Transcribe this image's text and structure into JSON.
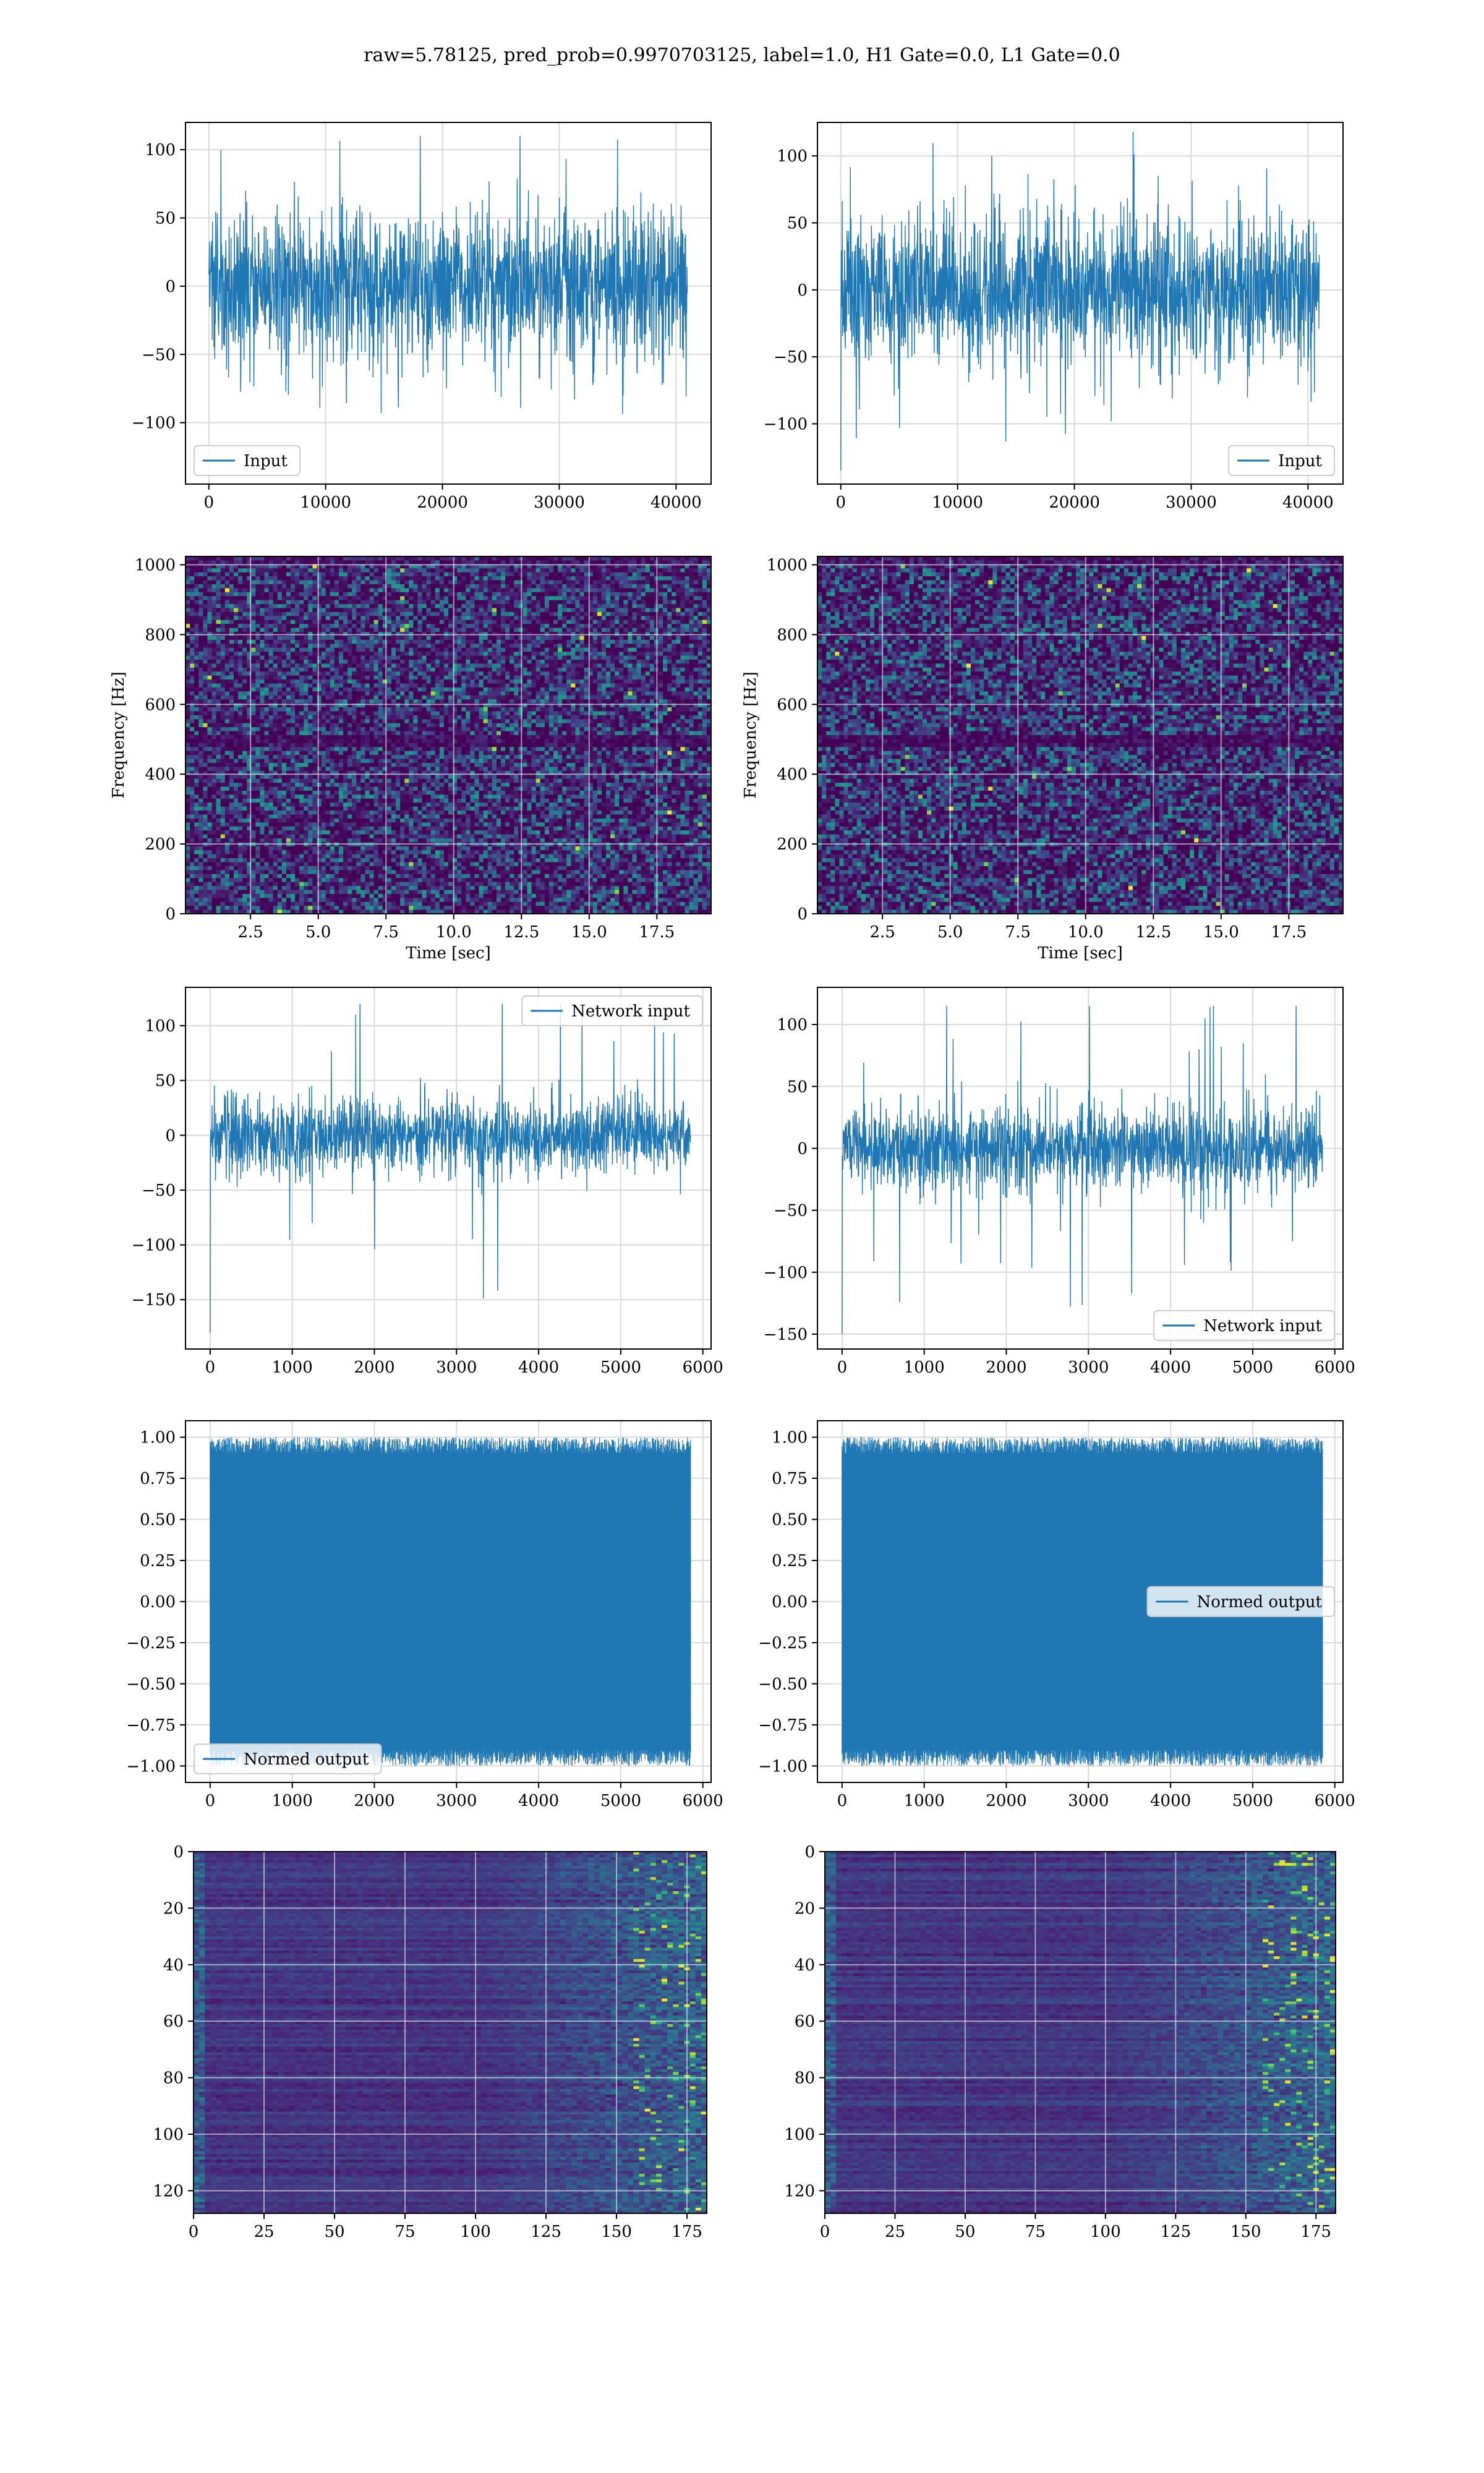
{
  "suptitle": "raw=5.78125, pred_prob=0.9970703125, label=1.0, H1 Gate=0.0, L1 Gate=0.0",
  "colors": {
    "line": "#1f77b4",
    "grid": "#d9d9d9",
    "viridis": [
      "#440154",
      "#482878",
      "#3e4989",
      "#31688e",
      "#26828e",
      "#1f9e89",
      "#35b779",
      "#6ece58",
      "#b5de2b",
      "#fde725"
    ]
  },
  "chart_data": [
    {
      "type": "line",
      "id": "h1-input",
      "legend": "Input",
      "legend_loc": "lower-left",
      "x_range": [
        0,
        40960
      ],
      "y_mean": 0,
      "y_band": 65,
      "y_min": -130,
      "y_max": 110,
      "xlim": [
        -2000,
        43000
      ],
      "ylim": [
        -145,
        120
      ],
      "xticks": [
        0,
        10000,
        20000,
        30000,
        40000
      ],
      "yticks": [
        -100,
        -50,
        0,
        50,
        100
      ]
    },
    {
      "type": "line",
      "id": "l1-input",
      "legend": "Input",
      "legend_loc": "lower-right",
      "x_range": [
        0,
        40960
      ],
      "y_mean": 0,
      "y_band": 65,
      "y_min": -135,
      "y_max": 120,
      "xlim": [
        -2000,
        43000
      ],
      "ylim": [
        -145,
        125
      ],
      "xticks": [
        0,
        10000,
        20000,
        30000,
        40000
      ],
      "yticks": [
        -100,
        -50,
        0,
        50,
        100
      ]
    },
    {
      "type": "heatmap",
      "id": "h1-spectrogram",
      "xlabel": "Time [sec]",
      "ylabel": "Frequency [Hz]",
      "xlim": [
        0.1,
        19.5
      ],
      "ylim": [
        0,
        1024
      ],
      "xticks": [
        2.5,
        5.0,
        7.5,
        10.0,
        12.5,
        15.0,
        17.5
      ],
      "xticklabels": [
        "2.5",
        "5.0",
        "7.5",
        "10.0",
        "12.5",
        "15.0",
        "17.5"
      ],
      "yticks": [
        0,
        200,
        400,
        600,
        800,
        1000
      ],
      "dark_band_hz": 500
    },
    {
      "type": "heatmap",
      "id": "l1-spectrogram",
      "xlabel": "Time [sec]",
      "ylabel": "Frequency [Hz]",
      "xlim": [
        0.1,
        19.5
      ],
      "ylim": [
        0,
        1024
      ],
      "xticks": [
        2.5,
        5.0,
        7.5,
        10.0,
        12.5,
        15.0,
        17.5
      ],
      "xticklabels": [
        "2.5",
        "5.0",
        "7.5",
        "10.0",
        "12.5",
        "15.0",
        "17.5"
      ],
      "yticks": [
        0,
        200,
        400,
        600,
        800,
        1000
      ],
      "dark_band_hz": 500
    },
    {
      "type": "line",
      "id": "h1-network-input",
      "legend": "Network input",
      "legend_loc": "upper-right",
      "x_range": [
        0,
        5850
      ],
      "y_mean": 0,
      "y_band": 40,
      "y_min": -180,
      "y_max": 120,
      "xlim": [
        -300,
        6100
      ],
      "ylim": [
        -195,
        135
      ],
      "xticks": [
        0,
        1000,
        2000,
        3000,
        4000,
        5000,
        6000
      ],
      "yticks": [
        -150,
        -100,
        -50,
        0,
        50,
        100
      ]
    },
    {
      "type": "line",
      "id": "l1-network-input",
      "legend": "Network input",
      "legend_loc": "lower-right",
      "x_range": [
        0,
        5850
      ],
      "y_mean": 0,
      "y_band": 40,
      "y_min": -150,
      "y_max": 115,
      "xlim": [
        -300,
        6100
      ],
      "ylim": [
        -162,
        130
      ],
      "xticks": [
        0,
        1000,
        2000,
        3000,
        4000,
        5000,
        6000
      ],
      "yticks": [
        -150,
        -100,
        -50,
        0,
        50,
        100
      ]
    },
    {
      "type": "area",
      "id": "h1-normed-output",
      "legend": "Normed output",
      "legend_loc": "lower-left",
      "x_range": [
        0,
        5850
      ],
      "y_min": -1.0,
      "y_max": 1.0,
      "fill_extent": 0.9,
      "xlim": [
        -300,
        6100
      ],
      "ylim": [
        -1.1,
        1.1
      ],
      "xticks": [
        0,
        1000,
        2000,
        3000,
        4000,
        5000,
        6000
      ],
      "yticks": [
        -1.0,
        -0.75,
        -0.5,
        -0.25,
        0.0,
        0.25,
        0.5,
        0.75,
        1.0
      ],
      "yticklabels": [
        "−1.00",
        "−0.75",
        "−0.50",
        "−0.25",
        "0.00",
        "0.25",
        "0.50",
        "0.75",
        "1.00"
      ]
    },
    {
      "type": "area",
      "id": "l1-normed-output",
      "legend": "Normed output",
      "legend_loc": "center-right",
      "x_range": [
        0,
        5850
      ],
      "y_min": -1.0,
      "y_max": 1.0,
      "fill_extent": 0.9,
      "xlim": [
        -300,
        6100
      ],
      "ylim": [
        -1.1,
        1.1
      ],
      "xticks": [
        0,
        1000,
        2000,
        3000,
        4000,
        5000,
        6000
      ],
      "yticks": [
        -1.0,
        -0.75,
        -0.5,
        -0.25,
        0.0,
        0.25,
        0.5,
        0.75,
        1.0
      ],
      "yticklabels": [
        "−1.00",
        "−0.75",
        "−0.50",
        "−0.25",
        "0.00",
        "0.25",
        "0.50",
        "0.75",
        "1.00"
      ]
    },
    {
      "type": "heatmap",
      "id": "h1-feature-map",
      "rows": 128,
      "cols": 182,
      "inverted_y": true,
      "xlim": [
        0,
        182
      ],
      "ylim": [
        0,
        128
      ],
      "xticks": [
        0,
        25,
        50,
        75,
        100,
        125,
        150,
        175
      ],
      "yticks": [
        0,
        20,
        40,
        60,
        80,
        100,
        120
      ]
    },
    {
      "type": "heatmap",
      "id": "l1-feature-map",
      "rows": 128,
      "cols": 182,
      "inverted_y": true,
      "xlim": [
        0,
        182
      ],
      "ylim": [
        0,
        128
      ],
      "xticks": [
        0,
        25,
        50,
        75,
        100,
        125,
        150,
        175
      ],
      "yticks": [
        0,
        20,
        40,
        60,
        80,
        100,
        120
      ]
    }
  ]
}
